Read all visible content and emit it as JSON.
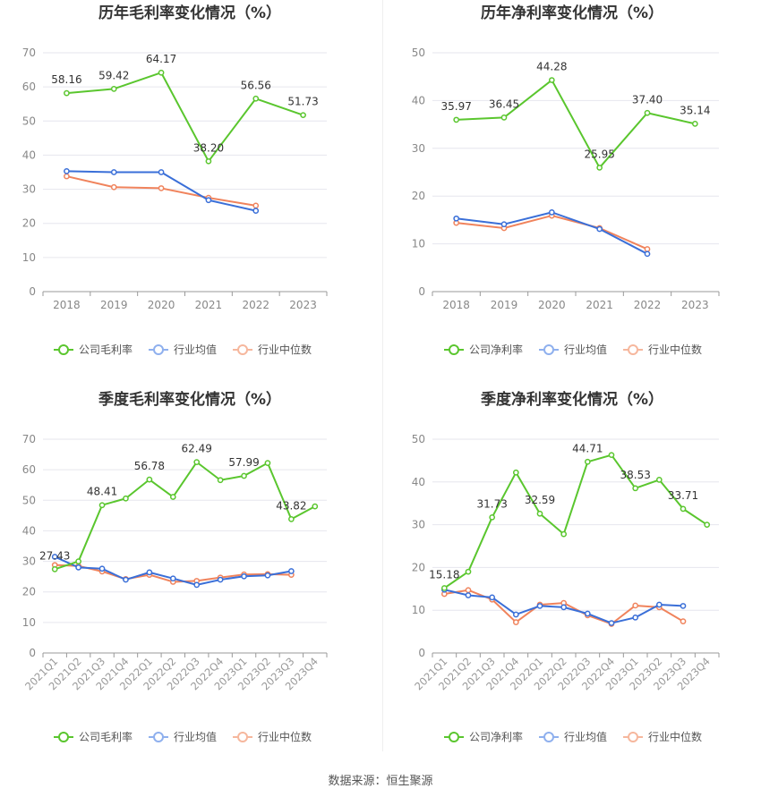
{
  "source_text": "数据来源：恒生聚源",
  "legend_labels": {
    "gross_company": "公司毛利率",
    "net_company": "公司净利率",
    "industry_avg": "行业均值",
    "industry_median": "行业中位数"
  },
  "colors": {
    "company": "#5ac62e",
    "industry_avg": "#3a6fd8",
    "industry_median": "#f0835c",
    "grid": "#e6e6ee",
    "axis": "#999999"
  },
  "chart_data": [
    {
      "type": "line",
      "title": "历年毛利率变化情况（%）",
      "categories": [
        "2018",
        "2019",
        "2020",
        "2021",
        "2022",
        "2023"
      ],
      "ylim": [
        0,
        70
      ],
      "yticks": [
        0,
        10,
        20,
        30,
        40,
        50,
        60,
        70
      ],
      "x_tick_rotation": 0,
      "series": [
        {
          "name": "公司毛利率",
          "values": [
            58.16,
            59.42,
            64.17,
            38.2,
            56.56,
            51.73
          ],
          "labels": [
            "58.16",
            "59.42",
            "64.17",
            "38.20",
            "56.56",
            "51.73"
          ]
        },
        {
          "name": "行业均值",
          "values": [
            35.3,
            35.0,
            35.0,
            26.8,
            23.7,
            null
          ]
        },
        {
          "name": "行业中位数",
          "values": [
            33.8,
            30.6,
            30.3,
            27.5,
            25.2,
            null
          ]
        }
      ]
    },
    {
      "type": "line",
      "title": "历年净利率变化情况（%）",
      "categories": [
        "2018",
        "2019",
        "2020",
        "2021",
        "2022",
        "2023"
      ],
      "ylim": [
        0,
        50
      ],
      "yticks": [
        0,
        10,
        20,
        30,
        40,
        50
      ],
      "x_tick_rotation": 0,
      "series": [
        {
          "name": "公司净利率",
          "values": [
            35.97,
            36.45,
            44.28,
            25.95,
            37.4,
            35.14
          ],
          "labels": [
            "35.97",
            "36.45",
            "44.28",
            "25.95",
            "37.40",
            "35.14"
          ]
        },
        {
          "name": "行业均值",
          "values": [
            15.3,
            14.1,
            16.6,
            13.1,
            7.9,
            null
          ]
        },
        {
          "name": "行业中位数",
          "values": [
            14.4,
            13.3,
            15.9,
            13.3,
            8.9,
            null
          ]
        }
      ]
    },
    {
      "type": "line",
      "title": "季度毛利率变化情况（%）",
      "categories": [
        "2021Q1",
        "2021Q2",
        "2021Q3",
        "2021Q4",
        "2022Q1",
        "2022Q2",
        "2022Q3",
        "2022Q4",
        "2023Q1",
        "2023Q2",
        "2023Q3",
        "2023Q4"
      ],
      "ylim": [
        0,
        70
      ],
      "yticks": [
        0,
        10,
        20,
        30,
        40,
        50,
        60,
        70
      ],
      "x_tick_rotation": -45,
      "series": [
        {
          "name": "公司毛利率",
          "values": [
            27.43,
            30.0,
            48.41,
            50.6,
            56.78,
            51.1,
            62.49,
            56.6,
            57.99,
            62.2,
            43.82,
            48.0
          ],
          "labels": [
            "27.43",
            "",
            "48.41",
            "",
            "56.78",
            "",
            "62.49",
            "",
            "57.99",
            "",
            "43.82",
            ""
          ]
        },
        {
          "name": "行业均值",
          "values": [
            31.5,
            28.0,
            27.6,
            24.0,
            26.4,
            24.4,
            22.3,
            24.0,
            25.1,
            25.4,
            26.8,
            null
          ]
        },
        {
          "name": "行业中位数",
          "values": [
            28.8,
            28.5,
            26.7,
            24.2,
            25.6,
            23.3,
            23.6,
            24.7,
            25.7,
            25.8,
            25.6,
            null
          ]
        }
      ]
    },
    {
      "type": "line",
      "title": "季度净利率变化情况（%）",
      "categories": [
        "2021Q1",
        "2021Q2",
        "2021Q3",
        "2021Q4",
        "2022Q1",
        "2022Q2",
        "2022Q3",
        "2022Q4",
        "2023Q1",
        "2023Q2",
        "2023Q3",
        "2023Q4"
      ],
      "ylim": [
        0,
        50
      ],
      "yticks": [
        0,
        10,
        20,
        30,
        40,
        50
      ],
      "x_tick_rotation": -45,
      "series": [
        {
          "name": "公司净利率",
          "values": [
            15.18,
            19.0,
            31.73,
            42.2,
            32.59,
            27.8,
            44.71,
            46.3,
            38.53,
            40.5,
            33.71,
            30.0
          ],
          "labels": [
            "15.18",
            "",
            "31.73",
            "",
            "32.59",
            "",
            "44.71",
            "",
            "38.53",
            "",
            "33.71",
            ""
          ]
        },
        {
          "name": "行业均值",
          "values": [
            14.8,
            13.5,
            13.0,
            9.0,
            11.0,
            10.7,
            9.2,
            7.0,
            8.3,
            11.3,
            11.0,
            null
          ]
        },
        {
          "name": "行业中位数",
          "values": [
            13.8,
            14.7,
            12.5,
            7.2,
            11.3,
            11.7,
            8.8,
            6.8,
            11.1,
            10.7,
            7.4,
            null
          ]
        }
      ]
    }
  ]
}
